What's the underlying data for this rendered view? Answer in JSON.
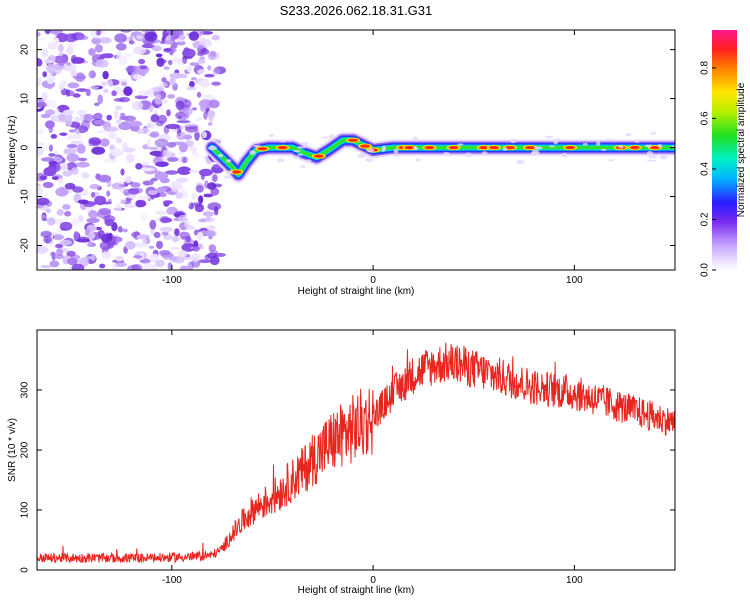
{
  "title": "S233.2026.062.18.31.G31",
  "chart_data": [
    {
      "type": "heatmap",
      "title": "S233.2026.062.18.31.G31",
      "xlabel": "Height of straight line (km)",
      "ylabel": "Frequency (Hz)",
      "xlim": [
        -167,
        150
      ],
      "ylim": [
        -25,
        24
      ],
      "xticks": [
        -100,
        0,
        100
      ],
      "yticks": [
        -20,
        -10,
        0,
        10,
        20
      ],
      "colorbar": {
        "label": "Normalized spectral amplitude",
        "range": [
          0,
          0.95
        ],
        "ticks": [
          "0.0",
          "0.2",
          "0.4",
          "0.6",
          "0.8"
        ]
      },
      "noise_region_end_km": -80,
      "ridge": {
        "x": [
          -80,
          -75,
          -70,
          -67,
          -63,
          -58,
          -52,
          -45,
          -40,
          -35,
          -28,
          -22,
          -15,
          -10,
          -5,
          0,
          10,
          30,
          60,
          100,
          150
        ],
        "freq_hz": [
          0,
          -2,
          -4,
          -5.5,
          -3,
          -0.5,
          0,
          0,
          0,
          -1,
          -2,
          -0.5,
          1.5,
          1.5,
          0.5,
          -0.5,
          0,
          0,
          0,
          0,
          0
        ]
      }
    },
    {
      "type": "line",
      "xlabel": "Height of straight line (km)",
      "ylabel": "SNR (10 * v/v)",
      "xlim": [
        -167,
        150
      ],
      "ylim": [
        0,
        400
      ],
      "xticks": [
        -100,
        0,
        100
      ],
      "yticks": [
        0,
        100,
        200,
        300
      ],
      "series": [
        {
          "name": "SNR",
          "color": "#e8251e",
          "x": [
            -167,
            -150,
            -130,
            -110,
            -90,
            -80,
            -75,
            -70,
            -65,
            -60,
            -55,
            -50,
            -45,
            -40,
            -35,
            -30,
            -25,
            -20,
            -15,
            -10,
            -5,
            0,
            5,
            10,
            15,
            20,
            25,
            30,
            35,
            40,
            45,
            50,
            55,
            60,
            70,
            80,
            90,
            100,
            110,
            120,
            130,
            140,
            150
          ],
          "y": [
            20,
            20,
            20,
            20,
            22,
            25,
            35,
            60,
            80,
            100,
            110,
            120,
            135,
            150,
            165,
            185,
            200,
            215,
            225,
            235,
            245,
            255,
            275,
            295,
            310,
            325,
            335,
            340,
            345,
            345,
            340,
            335,
            330,
            325,
            315,
            305,
            300,
            295,
            285,
            275,
            265,
            255,
            245
          ]
        }
      ]
    }
  ]
}
